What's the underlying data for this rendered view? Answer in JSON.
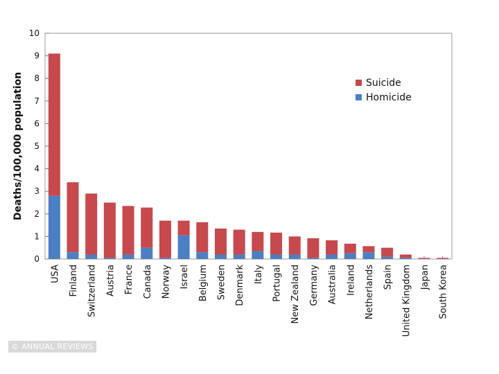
{
  "chart_data": {
    "type": "bar",
    "stacked": true,
    "title": "",
    "xlabel": "",
    "ylabel": "Deaths/100,000 population",
    "ylim": [
      0,
      10
    ],
    "yticks": [
      0,
      1,
      2,
      3,
      4,
      5,
      6,
      7,
      8,
      9,
      10
    ],
    "legend_position": "top-right",
    "categories": [
      "USA",
      "Finland",
      "Switzerland",
      "Austria",
      "France",
      "Canada",
      "Norway",
      "Israel",
      "Belgium",
      "Sweden",
      "Denmark",
      "Italy",
      "Portugal",
      "New Zealand",
      "Germany",
      "Australia",
      "Ireland",
      "Netherlands",
      "Spain",
      "United Kingdom",
      "Japan",
      "South Korea"
    ],
    "series": [
      {
        "name": "Homicide",
        "color": "#4a7fc6",
        "values": [
          2.8,
          0.3,
          0.2,
          0.05,
          0.2,
          0.5,
          0.05,
          1.05,
          0.3,
          0.2,
          0.2,
          0.35,
          0.2,
          0.2,
          0.05,
          0.2,
          0.25,
          0.3,
          0.1,
          0.05,
          0.01,
          0.01
        ]
      },
      {
        "name": "Suicide",
        "color": "#c8484b",
        "values": [
          6.3,
          3.1,
          2.7,
          2.45,
          2.15,
          1.78,
          1.65,
          0.65,
          1.33,
          1.15,
          1.1,
          0.85,
          0.97,
          0.8,
          0.87,
          0.63,
          0.43,
          0.27,
          0.4,
          0.15,
          0.04,
          0.04
        ]
      }
    ],
    "legend": [
      "Suicide",
      "Homicide"
    ]
  },
  "credit": "© ANNUAL REVIEWS"
}
